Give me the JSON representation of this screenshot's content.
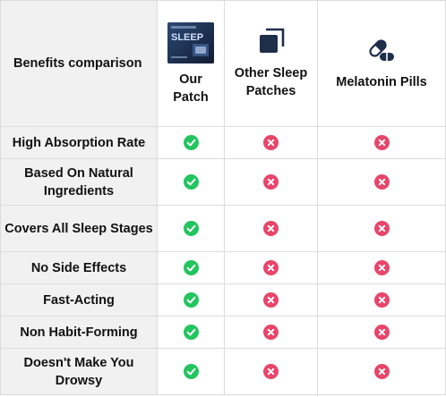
{
  "header": {
    "corner_label": "Benefits comparison",
    "columns": [
      {
        "label": "Our Patch",
        "icon": "sleep-patch-box-image"
      },
      {
        "label": "Other Sleep Patches",
        "icon": "square-layers-icon"
      },
      {
        "label": "Melatonin Pills",
        "icon": "pill-capsule-icon"
      }
    ]
  },
  "rows": [
    {
      "label": "High Absorption Rate",
      "values": [
        "yes",
        "no",
        "no"
      ]
    },
    {
      "label": "Based On Natural Ingredients",
      "values": [
        "yes",
        "no",
        "no"
      ]
    },
    {
      "label": "Covers All Sleep Stages",
      "values": [
        "yes",
        "no",
        "no"
      ]
    },
    {
      "label": "No Side Effects",
      "values": [
        "yes",
        "no",
        "no"
      ]
    },
    {
      "label": "Fast-Acting",
      "values": [
        "yes",
        "no",
        "no"
      ]
    },
    {
      "label": "Non Habit-Forming",
      "values": [
        "yes",
        "no",
        "no"
      ]
    },
    {
      "label": "Doesn't Make You Drowsy",
      "values": [
        "yes",
        "no",
        "no"
      ]
    }
  ],
  "product_box": {
    "text": "SLEEP"
  },
  "colors": {
    "check": "#22c55e",
    "cross": "#e8456b",
    "icon": "#1f2f4a",
    "first_column_bg": "#f1f1f1"
  }
}
